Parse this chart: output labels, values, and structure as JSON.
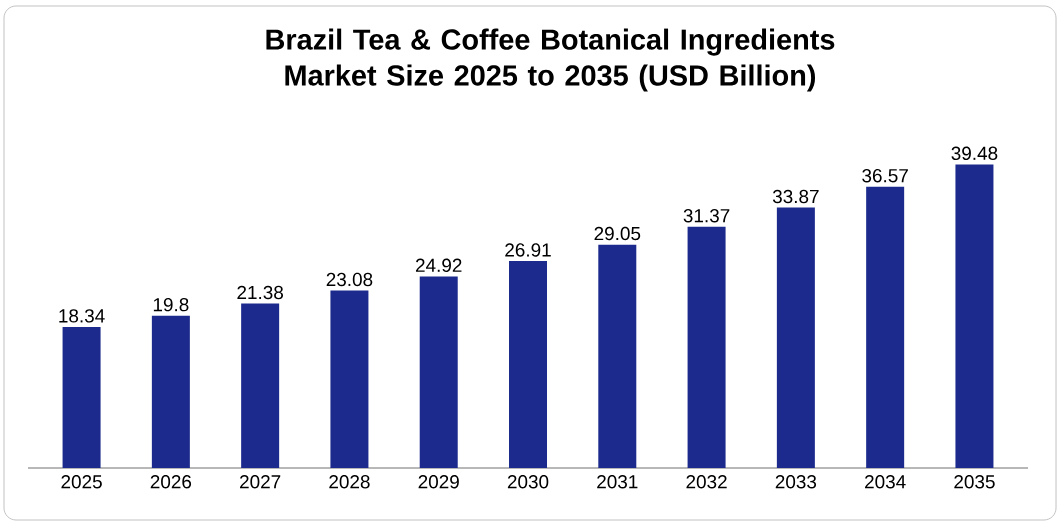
{
  "chart_data": {
    "type": "bar",
    "title": "Brazil Tea & Coffee Botanical Ingredients Market Size 2025 to 2035 (USD Billion)",
    "categories": [
      "2025",
      "2026",
      "2027",
      "2028",
      "2029",
      "2030",
      "2031",
      "2032",
      "2033",
      "2034",
      "2035"
    ],
    "values": [
      18.34,
      19.8,
      21.38,
      23.08,
      24.92,
      26.91,
      29.05,
      31.37,
      33.87,
      36.57,
      39.48
    ],
    "color": "#1b2a8c",
    "data_labels": true
  }
}
